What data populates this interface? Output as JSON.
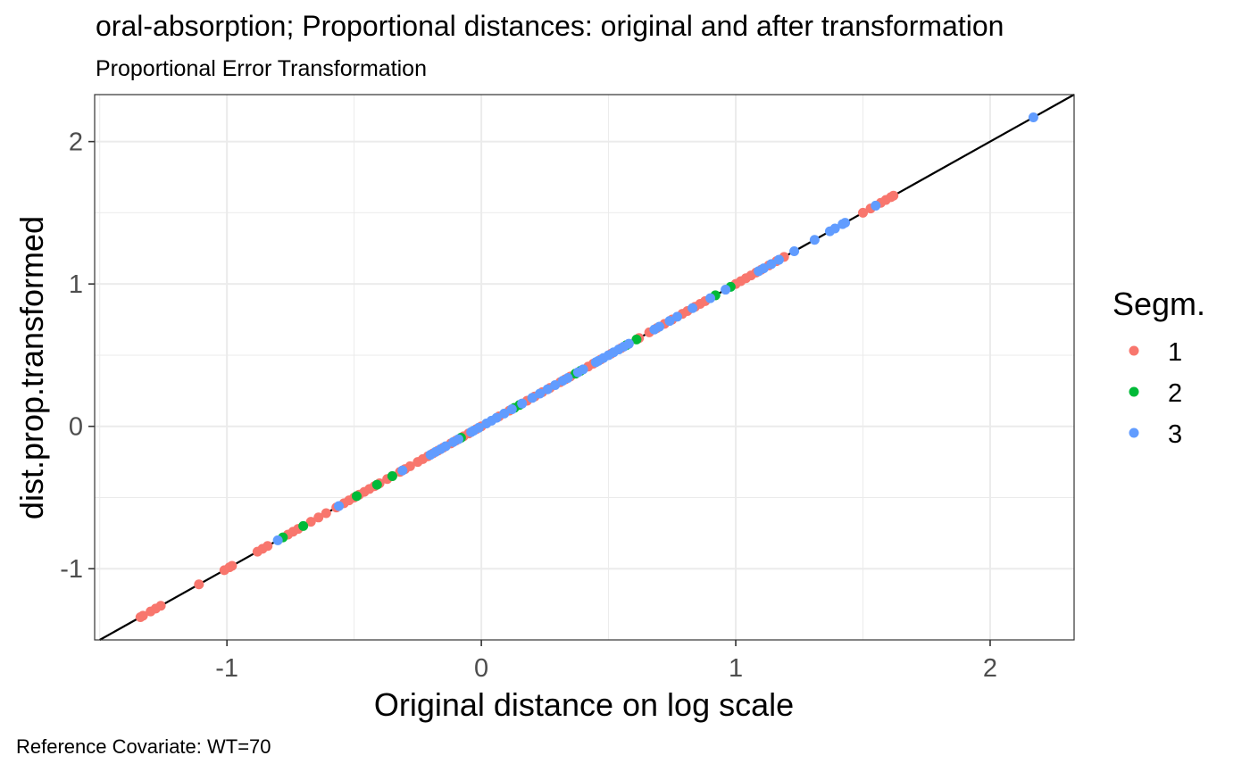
{
  "chart_data": {
    "type": "scatter",
    "title": "oral-absorption; Proportional distances: original and after transformation",
    "subtitle": "Proportional Error Transformation",
    "xlabel": "Original distance on log scale",
    "ylabel": "dist.prop.transformed",
    "caption": "Reference Covariate: WT=70",
    "xlim": [
      -1.52,
      2.33
    ],
    "ylim": [
      -1.5,
      2.33
    ],
    "x_ticks": [
      -1,
      0,
      1,
      2
    ],
    "y_ticks": [
      -1,
      0,
      1,
      2
    ],
    "x_tick_labels": [
      "-1",
      "0",
      "1",
      "2"
    ],
    "y_tick_labels": [
      "-1",
      "0",
      "1",
      "2"
    ],
    "grid": true,
    "legend_position": "right",
    "reference_line": {
      "type": "identity",
      "slope": 1,
      "intercept": 0,
      "color": "#000000"
    },
    "legend": {
      "title": "Segm.",
      "entries": [
        {
          "label": "1",
          "color": "#F8766D"
        },
        {
          "label": "2",
          "color": "#00BA38"
        },
        {
          "label": "3",
          "color": "#619CFF"
        }
      ]
    },
    "series": [
      {
        "name": "1",
        "color": "#F8766D",
        "x": [
          -1.34,
          -1.33,
          -1.3,
          -1.28,
          -1.26,
          -1.11,
          -1.01,
          -0.99,
          -0.98,
          -0.88,
          -0.86,
          -0.84,
          -0.76,
          -0.74,
          -0.72,
          -0.67,
          -0.64,
          -0.61,
          -0.57,
          -0.54,
          -0.52,
          -0.5,
          -0.48,
          -0.46,
          -0.44,
          -0.42,
          -0.4,
          -0.37,
          -0.35,
          -0.32,
          -0.3,
          -0.28,
          -0.25,
          -0.23,
          -0.21,
          -0.19,
          -0.17,
          -0.15,
          -0.12,
          -0.1,
          -0.07,
          -0.05,
          -0.02,
          0.0,
          0.07,
          0.11,
          0.18,
          0.21,
          0.24,
          0.27,
          0.31,
          0.33,
          0.35,
          0.42,
          0.44,
          0.47,
          0.51,
          0.55,
          0.62,
          0.66,
          0.69,
          0.72,
          0.75,
          0.79,
          0.81,
          0.84,
          0.86,
          0.88,
          1.0,
          1.02,
          1.04,
          1.06,
          1.08,
          1.1,
          1.13,
          1.16,
          1.19,
          1.5,
          1.53,
          1.57,
          1.59,
          1.61,
          1.62
        ],
        "y": [
          -1.34,
          -1.33,
          -1.3,
          -1.28,
          -1.26,
          -1.11,
          -1.01,
          -0.99,
          -0.98,
          -0.88,
          -0.86,
          -0.84,
          -0.76,
          -0.74,
          -0.72,
          -0.67,
          -0.64,
          -0.61,
          -0.57,
          -0.54,
          -0.52,
          -0.5,
          -0.48,
          -0.46,
          -0.44,
          -0.42,
          -0.4,
          -0.37,
          -0.35,
          -0.32,
          -0.3,
          -0.28,
          -0.25,
          -0.23,
          -0.21,
          -0.19,
          -0.17,
          -0.15,
          -0.12,
          -0.1,
          -0.07,
          -0.05,
          -0.02,
          0.0,
          0.07,
          0.11,
          0.18,
          0.21,
          0.24,
          0.27,
          0.31,
          0.33,
          0.35,
          0.42,
          0.44,
          0.47,
          0.51,
          0.55,
          0.62,
          0.66,
          0.69,
          0.72,
          0.75,
          0.79,
          0.81,
          0.84,
          0.86,
          0.88,
          1.0,
          1.02,
          1.04,
          1.06,
          1.08,
          1.1,
          1.13,
          1.16,
          1.19,
          1.5,
          1.53,
          1.57,
          1.59,
          1.61,
          1.62
        ]
      },
      {
        "name": "2",
        "color": "#00BA38",
        "x": [
          -0.78,
          -0.7,
          -0.49,
          -0.41,
          -0.35,
          -0.08,
          0.13,
          0.15,
          0.37,
          0.39,
          0.57,
          0.61,
          0.92,
          0.98
        ],
        "y": [
          -0.78,
          -0.7,
          -0.49,
          -0.41,
          -0.35,
          -0.08,
          0.13,
          0.15,
          0.37,
          0.39,
          0.57,
          0.61,
          0.92,
          0.98
        ]
      },
      {
        "name": "3",
        "color": "#619CFF",
        "x": [
          -0.8,
          -0.56,
          -0.31,
          -0.2,
          -0.18,
          -0.16,
          -0.14,
          -0.11,
          -0.09,
          -0.04,
          -0.03,
          -0.01,
          0.02,
          0.04,
          0.06,
          0.09,
          0.12,
          0.16,
          0.2,
          0.23,
          0.26,
          0.29,
          0.32,
          0.34,
          0.38,
          0.4,
          0.45,
          0.46,
          0.48,
          0.5,
          0.52,
          0.54,
          0.56,
          0.58,
          0.68,
          0.7,
          0.74,
          0.77,
          0.83,
          0.9,
          0.96,
          1.09,
          1.11,
          1.14,
          1.17,
          1.23,
          1.31,
          1.37,
          1.39,
          1.42,
          1.43,
          1.55,
          2.17
        ],
        "y": [
          -0.8,
          -0.56,
          -0.31,
          -0.2,
          -0.18,
          -0.16,
          -0.14,
          -0.11,
          -0.09,
          -0.04,
          -0.03,
          -0.01,
          0.02,
          0.04,
          0.06,
          0.09,
          0.12,
          0.16,
          0.2,
          0.23,
          0.26,
          0.29,
          0.32,
          0.34,
          0.38,
          0.4,
          0.45,
          0.46,
          0.48,
          0.5,
          0.52,
          0.54,
          0.56,
          0.58,
          0.68,
          0.7,
          0.74,
          0.77,
          0.83,
          0.9,
          0.96,
          1.09,
          1.11,
          1.14,
          1.17,
          1.23,
          1.31,
          1.37,
          1.39,
          1.42,
          1.43,
          1.55,
          2.17
        ]
      }
    ]
  }
}
